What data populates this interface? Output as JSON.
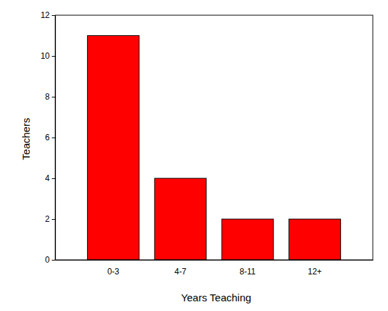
{
  "chart_data": {
    "type": "bar",
    "x_label": "Years Teaching",
    "y_label": "Teachers",
    "categories": [
      "0-3",
      "4-7",
      "8-11",
      "12+"
    ],
    "values": [
      11,
      4,
      2,
      2
    ],
    "color": "#ff0000",
    "ylim": [
      0,
      12
    ],
    "yticks": [
      0,
      2,
      4,
      6,
      8,
      10,
      12
    ],
    "grid": false
  }
}
